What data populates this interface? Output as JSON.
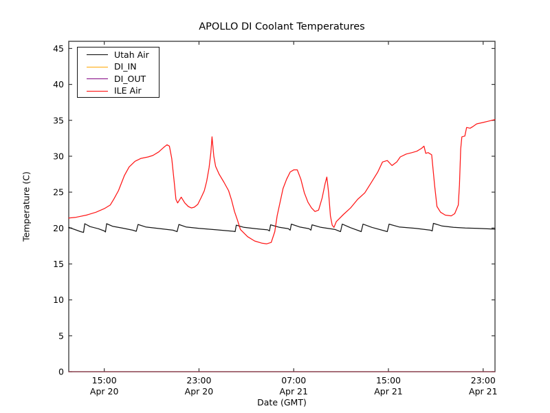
{
  "chart_data": {
    "type": "line",
    "title": "APOLLO DI Coolant Temperatures",
    "xlabel": "Date (GMT)",
    "ylabel": "Temperature (C)",
    "ylim": [
      0,
      46
    ],
    "yticks": [
      0,
      5,
      10,
      15,
      20,
      25,
      30,
      35,
      40,
      45
    ],
    "grid": false,
    "x_axis": {
      "xlim": [
        0,
        36
      ],
      "unit": "hours",
      "ticks": [
        {
          "t": 3,
          "time": "15:00",
          "date": "Apr 20"
        },
        {
          "t": 11,
          "time": "23:00",
          "date": "Apr 20"
        },
        {
          "t": 19,
          "time": "07:00",
          "date": "Apr 21"
        },
        {
          "t": 27,
          "time": "15:00",
          "date": "Apr 21"
        },
        {
          "t": 35,
          "time": "23:00",
          "date": "Apr 21"
        }
      ]
    },
    "legend": {
      "position": "upper left"
    },
    "series": [
      {
        "name": "Utah Air",
        "color": "#000000",
        "points": [
          [
            0,
            20.1
          ],
          [
            0.5,
            19.8
          ],
          [
            1.0,
            19.5
          ],
          [
            1.25,
            19.4
          ],
          [
            1.35,
            20.6
          ],
          [
            1.8,
            20.2
          ],
          [
            2.5,
            19.9
          ],
          [
            3.0,
            19.6
          ],
          [
            3.1,
            19.45
          ],
          [
            3.2,
            20.6
          ],
          [
            3.7,
            20.25
          ],
          [
            4.5,
            20.0
          ],
          [
            5.4,
            19.7
          ],
          [
            5.7,
            19.55
          ],
          [
            5.85,
            20.5
          ],
          [
            6.5,
            20.15
          ],
          [
            7.5,
            19.95
          ],
          [
            8.8,
            19.7
          ],
          [
            9.15,
            19.5
          ],
          [
            9.3,
            20.5
          ],
          [
            9.9,
            20.15
          ],
          [
            11.0,
            19.95
          ],
          [
            12.5,
            19.75
          ],
          [
            13.9,
            19.55
          ],
          [
            14.05,
            19.5
          ],
          [
            14.15,
            20.4
          ],
          [
            14.8,
            20.1
          ],
          [
            15.8,
            19.9
          ],
          [
            16.8,
            19.75
          ],
          [
            16.95,
            19.6
          ],
          [
            17.05,
            20.45
          ],
          [
            17.8,
            20.1
          ],
          [
            18.55,
            19.9
          ],
          [
            18.7,
            19.7
          ],
          [
            18.8,
            20.55
          ],
          [
            19.5,
            20.15
          ],
          [
            20.3,
            19.9
          ],
          [
            20.45,
            19.7
          ],
          [
            20.55,
            20.45
          ],
          [
            21.3,
            20.1
          ],
          [
            22.5,
            19.8
          ],
          [
            22.95,
            19.5
          ],
          [
            23.1,
            20.55
          ],
          [
            23.8,
            20.05
          ],
          [
            24.55,
            19.6
          ],
          [
            24.7,
            19.5
          ],
          [
            24.85,
            20.55
          ],
          [
            25.6,
            20.1
          ],
          [
            26.7,
            19.6
          ],
          [
            26.9,
            19.5
          ],
          [
            27.05,
            20.55
          ],
          [
            27.9,
            20.15
          ],
          [
            29.3,
            19.95
          ],
          [
            30.55,
            19.7
          ],
          [
            30.7,
            19.6
          ],
          [
            30.8,
            20.65
          ],
          [
            31.5,
            20.3
          ],
          [
            32.5,
            20.1
          ],
          [
            33.5,
            20.0
          ],
          [
            34.5,
            19.95
          ],
          [
            36.0,
            19.85
          ]
        ]
      },
      {
        "name": "DI_IN",
        "color": "#ffa500",
        "points": [
          [
            0,
            0
          ],
          [
            36,
            0
          ]
        ]
      },
      {
        "name": "DI_OUT",
        "color": "#800080",
        "points": [
          [
            0,
            0
          ],
          [
            36,
            0
          ]
        ]
      },
      {
        "name": "ILE Air",
        "color": "#ff0000",
        "points": [
          [
            0,
            21.4
          ],
          [
            0.6,
            21.5
          ],
          [
            1.5,
            21.8
          ],
          [
            2.3,
            22.2
          ],
          [
            3.0,
            22.7
          ],
          [
            3.5,
            23.2
          ],
          [
            3.8,
            24.0
          ],
          [
            4.2,
            25.2
          ],
          [
            4.7,
            27.3
          ],
          [
            5.1,
            28.5
          ],
          [
            5.6,
            29.3
          ],
          [
            6.1,
            29.7
          ],
          [
            6.7,
            29.9
          ],
          [
            7.1,
            30.1
          ],
          [
            7.6,
            30.6
          ],
          [
            8.0,
            31.2
          ],
          [
            8.3,
            31.6
          ],
          [
            8.5,
            31.4
          ],
          [
            8.7,
            29.7
          ],
          [
            8.9,
            26.5
          ],
          [
            9.05,
            24.0
          ],
          [
            9.2,
            23.5
          ],
          [
            9.5,
            24.3
          ],
          [
            9.8,
            23.5
          ],
          [
            10.1,
            23.0
          ],
          [
            10.35,
            22.8
          ],
          [
            10.6,
            22.9
          ],
          [
            10.9,
            23.3
          ],
          [
            11.2,
            24.3
          ],
          [
            11.45,
            25.2
          ],
          [
            11.65,
            26.5
          ],
          [
            11.85,
            28.4
          ],
          [
            12.0,
            30.5
          ],
          [
            12.1,
            32.7
          ],
          [
            12.25,
            30.0
          ],
          [
            12.4,
            28.6
          ],
          [
            12.7,
            27.5
          ],
          [
            13.1,
            26.4
          ],
          [
            13.5,
            25.2
          ],
          [
            13.75,
            23.9
          ],
          [
            14.0,
            22.3
          ],
          [
            14.25,
            21.1
          ],
          [
            14.5,
            19.8
          ],
          [
            15.1,
            18.8
          ],
          [
            15.7,
            18.2
          ],
          [
            16.3,
            17.9
          ],
          [
            16.7,
            17.8
          ],
          [
            17.1,
            18.0
          ],
          [
            17.4,
            19.5
          ],
          [
            17.6,
            21.7
          ],
          [
            17.85,
            23.6
          ],
          [
            18.1,
            25.5
          ],
          [
            18.4,
            26.8
          ],
          [
            18.7,
            27.8
          ],
          [
            19.0,
            28.1
          ],
          [
            19.3,
            28.1
          ],
          [
            19.6,
            26.8
          ],
          [
            19.9,
            24.9
          ],
          [
            20.2,
            23.6
          ],
          [
            20.5,
            22.8
          ],
          [
            20.8,
            22.3
          ],
          [
            21.1,
            22.5
          ],
          [
            21.4,
            24.2
          ],
          [
            21.65,
            26.2
          ],
          [
            21.8,
            27.1
          ],
          [
            21.95,
            24.9
          ],
          [
            22.1,
            21.7
          ],
          [
            22.25,
            20.4
          ],
          [
            22.4,
            20.1
          ],
          [
            22.6,
            20.9
          ],
          [
            23.2,
            21.9
          ],
          [
            23.8,
            22.8
          ],
          [
            24.4,
            24.0
          ],
          [
            25.0,
            24.9
          ],
          [
            25.5,
            26.2
          ],
          [
            26.1,
            27.8
          ],
          [
            26.5,
            29.2
          ],
          [
            26.9,
            29.4
          ],
          [
            27.3,
            28.7
          ],
          [
            27.7,
            29.2
          ],
          [
            28.0,
            29.9
          ],
          [
            28.5,
            30.3
          ],
          [
            29.0,
            30.5
          ],
          [
            29.4,
            30.7
          ],
          [
            29.8,
            31.1
          ],
          [
            30.0,
            31.4
          ],
          [
            30.15,
            30.4
          ],
          [
            30.35,
            30.5
          ],
          [
            30.65,
            30.2
          ],
          [
            30.9,
            25.9
          ],
          [
            31.1,
            23.0
          ],
          [
            31.4,
            22.2
          ],
          [
            31.8,
            21.8
          ],
          [
            32.3,
            21.7
          ],
          [
            32.6,
            22.0
          ],
          [
            32.9,
            23.2
          ],
          [
            33.0,
            26.0
          ],
          [
            33.1,
            31.0
          ],
          [
            33.2,
            32.7
          ],
          [
            33.45,
            32.8
          ],
          [
            33.6,
            34.0
          ],
          [
            33.9,
            33.9
          ],
          [
            34.1,
            34.1
          ],
          [
            34.45,
            34.5
          ],
          [
            35.0,
            34.7
          ],
          [
            35.5,
            34.9
          ],
          [
            36.0,
            35.1
          ]
        ]
      }
    ]
  }
}
